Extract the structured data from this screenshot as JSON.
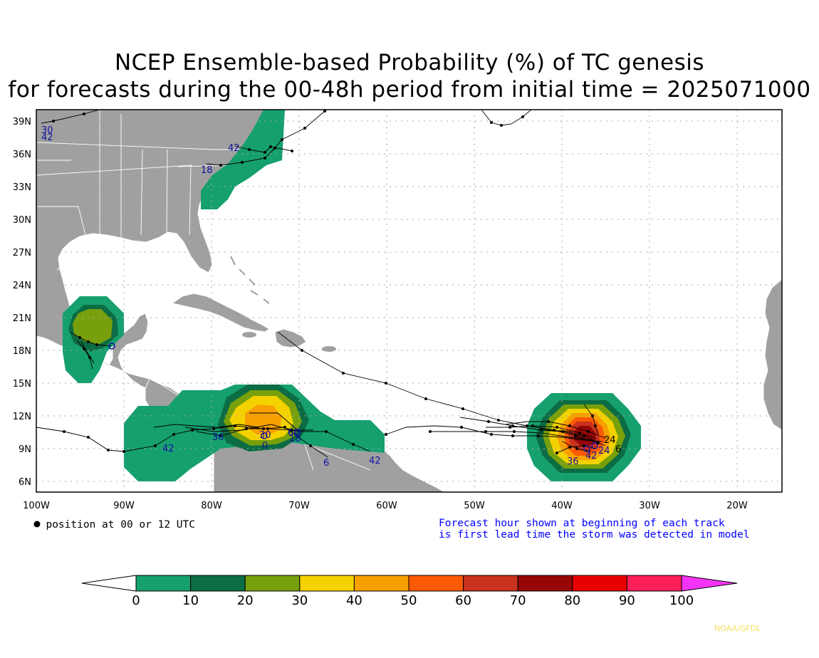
{
  "title": {
    "line1": "NCEP Ensemble-based Probability (%) of TC genesis",
    "line2": "for forecasts during the 00-48h period from initial time = 2025071000"
  },
  "map": {
    "lon_range": [
      -100,
      -15
    ],
    "lat_range": [
      5,
      40
    ],
    "lon_ticks": [
      "100W",
      "90W",
      "80W",
      "70W",
      "60W",
      "50W",
      "40W",
      "30W",
      "20W"
    ],
    "lat_ticks": [
      "6N",
      "9N",
      "12N",
      "15N",
      "18N",
      "21N",
      "24N",
      "27N",
      "30N",
      "33N",
      "36N",
      "39N"
    ],
    "ocean_color": "#ffffff",
    "land_color": "#a0a0a0",
    "grid": "dotted"
  },
  "track_labels": [
    "30",
    "42",
    "42",
    "18",
    "42",
    "6",
    "42",
    "36",
    "0",
    "6",
    "30",
    "0",
    "18",
    "24",
    "6",
    "36",
    "42",
    "24"
  ],
  "notes": {
    "dot_legend": "= position at 00 or 12 UTC",
    "forecast_line1": "Forecast hour shown at beginning of each track",
    "forecast_line2": "is first lead time the storm was detected in model"
  },
  "colorbar": {
    "ticks": [
      "0",
      "10",
      "20",
      "30",
      "40",
      "50",
      "60",
      "70",
      "80",
      "90",
      "100"
    ],
    "colors": [
      "#15a06e",
      "#0c6c43",
      "#78a00c",
      "#f3d200",
      "#f7a000",
      "#fb5a06",
      "#c8321e",
      "#960606",
      "#e80000",
      "#fc1f5a",
      "#f533f5"
    ]
  },
  "credit": "NOAA/GFDL"
}
